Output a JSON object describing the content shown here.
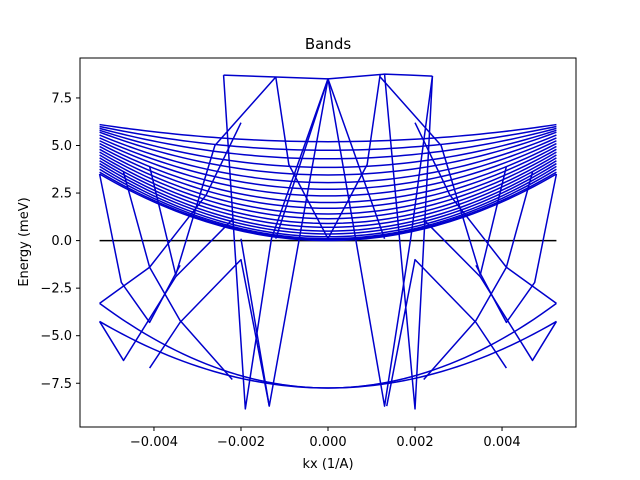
{
  "chart_data": {
    "type": "line",
    "title": "Bands",
    "xlabel": "kx (1/A)",
    "ylabel": "Energy (meV)",
    "xlim": [
      -0.0057,
      0.0057
    ],
    "ylim": [
      -9.8,
      9.6
    ],
    "x_ticks": [
      -0.004,
      -0.002,
      0.0,
      0.002,
      0.004
    ],
    "x_tick_labels": [
      "−0.004",
      "−0.002",
      "0.000",
      "0.002",
      "0.004"
    ],
    "y_ticks": [
      -7.5,
      -5.0,
      -2.5,
      0.0,
      2.5,
      5.0,
      7.5
    ],
    "y_tick_labels": [
      "−7.5",
      "−5.0",
      "−2.5",
      "0.0",
      "2.5",
      "5.0",
      "7.5"
    ],
    "grid": false,
    "colors": {
      "bands": "#0000cc",
      "fermi_level": "#000000"
    },
    "k_range": [
      -0.00525,
      0.00525
    ],
    "fermi_level": 0.0,
    "upper_bands": [
      {
        "k_edge": [
          0.0,
          3.5
        ],
        "k_zero": [
          -0.00525,
          0.0
        ]
      },
      {
        "k_edge": [
          0.05,
          3.6
        ],
        "k_zero": [
          -0.0052,
          0.05
        ]
      },
      {
        "k_edge": [
          0.1,
          3.75
        ],
        "k_zero": [
          -0.0051,
          0.1
        ]
      },
      {
        "k_edge": [
          0.2,
          3.9
        ],
        "k_zero": [
          -0.005,
          0.2
        ]
      },
      {
        "k_edge": [
          0.35,
          4.05
        ],
        "k_zero": [
          -0.0049,
          0.35
        ]
      },
      {
        "k_edge": [
          0.5,
          4.2
        ],
        "k_zero": [
          -0.0048,
          0.5
        ]
      },
      {
        "k_edge": [
          0.7,
          4.35
        ],
        "k_zero": [
          -0.0047,
          0.7
        ]
      },
      {
        "k_edge": [
          0.9,
          4.5
        ],
        "k_zero": [
          -0.0046,
          0.9
        ]
      },
      {
        "k_edge": [
          1.15,
          4.65
        ],
        "k_zero": [
          -0.0045,
          1.15
        ]
      },
      {
        "k_edge": [
          1.4,
          4.8
        ],
        "k_zero": [
          -0.0044,
          1.4
        ]
      },
      {
        "k_edge": [
          1.7,
          4.95
        ],
        "k_zero": [
          -0.0043,
          1.7
        ]
      },
      {
        "k_edge": [
          2.0,
          5.1
        ],
        "k_zero": [
          -0.0042,
          2.0
        ]
      },
      {
        "k_edge": [
          2.35,
          5.25
        ],
        "k_zero": [
          -0.0041,
          2.35
        ]
      },
      {
        "k_edge": [
          2.7,
          5.4
        ],
        "k_zero": [
          -0.004,
          2.7
        ]
      },
      {
        "k_edge": [
          3.05,
          5.55
        ],
        "k_zero": [
          -0.0039,
          3.05
        ]
      },
      {
        "k_edge": [
          3.45,
          5.7
        ],
        "k_zero": [
          -0.0038,
          3.45
        ]
      },
      {
        "k_edge": [
          3.85,
          5.8
        ],
        "k_zero": [
          -0.0037,
          3.85
        ]
      },
      {
        "k_edge": [
          4.3,
          5.9
        ],
        "k_zero": [
          -0.0036,
          4.3
        ]
      },
      {
        "k_edge": [
          4.75,
          6.0
        ],
        "k_zero": [
          -0.0035,
          4.75
        ]
      },
      {
        "k_edge": [
          5.2,
          6.1
        ],
        "k_zero": [
          -0.0034,
          5.2
        ]
      }
    ],
    "upper_band_peaks": [
      {
        "k": -0.0024,
        "energy": 8.7
      },
      {
        "k": -0.0012,
        "energy": 8.6
      },
      {
        "k": 0.0,
        "energy": 8.5
      },
      {
        "k": 0.0013,
        "energy": 8.75
      },
      {
        "k": 0.0019,
        "energy": 8.7
      },
      {
        "k": 0.0024,
        "energy": 8.65
      }
    ],
    "lower_bands": [
      {
        "k_edge": [
          -0.00525,
          -3.3
        ],
        "k_mid": [
          0.0,
          -7.75
        ]
      },
      {
        "k_edge": [
          -0.00525,
          -4.25
        ],
        "k_mid": [
          0.0,
          -7.75
        ]
      }
    ],
    "crossing_lines": [
      {
        "x": [
          -0.00525,
          -0.00475,
          -0.0041,
          -0.0034
        ],
        "y": [
          3.5,
          -2.2,
          -4.3,
          -1.3
        ]
      },
      {
        "x": [
          -0.00525,
          -0.0041,
          -0.0034,
          -0.0022
        ],
        "y": [
          -3.3,
          -1.4,
          -4.2,
          -7.3
        ]
      },
      {
        "x": [
          -0.00525,
          -0.0047,
          -0.0035,
          -0.0022
        ],
        "y": [
          -4.25,
          -6.3,
          -1.9,
          1.1
        ]
      },
      {
        "x": [
          -0.0047,
          -0.0041,
          -0.0028,
          -0.002
        ],
        "y": [
          3.6,
          -1.4,
          2.4,
          6.2
        ]
      },
      {
        "x": [
          -0.0041,
          -0.0035,
          -0.0026,
          -0.0012
        ],
        "y": [
          3.9,
          -1.8,
          5.0,
          8.6
        ]
      },
      {
        "x": [
          -0.0041,
          -0.0034,
          -0.002,
          -0.00135
        ],
        "y": [
          -6.7,
          -4.3,
          -1.0,
          -8.7
        ]
      },
      {
        "x": [
          -0.0024,
          -0.0019,
          -0.0013,
          0.0
        ],
        "y": [
          8.7,
          -8.85,
          0.1,
          8.5
        ]
      },
      {
        "x": [
          -0.002,
          -0.00135,
          0.0
        ],
        "y": [
          0.1,
          -8.7,
          8.5
        ]
      },
      {
        "x": [
          -0.0012,
          -0.0009,
          0.0,
          0.0009,
          0.0012
        ],
        "y": [
          8.6,
          4.0,
          0.1,
          4.0,
          8.75
        ]
      },
      {
        "x": [
          -0.0012,
          0.0,
          0.0013
        ],
        "y": [
          0.1,
          8.5,
          0.1
        ]
      },
      {
        "x": [
          0.0,
          0.0013,
          0.0019,
          0.0024
        ],
        "y": [
          8.5,
          -8.7,
          0.1,
          8.65
        ]
      },
      {
        "x": [
          0.0013,
          0.002,
          0.0024
        ],
        "y": [
          8.75,
          -8.85,
          8.65
        ]
      },
      {
        "x": [
          0.00525,
          0.00475,
          0.0041,
          0.0034
        ],
        "y": [
          3.5,
          -2.2,
          -4.3,
          -1.3
        ]
      },
      {
        "x": [
          0.00525,
          0.0041,
          0.0034,
          0.0022
        ],
        "y": [
          -3.3,
          -1.4,
          -4.2,
          -7.3
        ]
      },
      {
        "x": [
          0.00525,
          0.0047,
          0.0035,
          0.0022
        ],
        "y": [
          -4.25,
          -6.3,
          -1.9,
          1.1
        ]
      },
      {
        "x": [
          0.0047,
          0.0041,
          0.0028,
          0.002
        ],
        "y": [
          3.6,
          -1.4,
          2.4,
          6.2
        ]
      },
      {
        "x": [
          0.0041,
          0.0035,
          0.0026,
          0.0012
        ],
        "y": [
          3.9,
          -1.8,
          5.0,
          8.6
        ]
      },
      {
        "x": [
          0.0041,
          0.0034,
          0.002,
          0.00135
        ],
        "y": [
          -6.7,
          -4.3,
          -1.0,
          -8.7
        ]
      }
    ]
  }
}
